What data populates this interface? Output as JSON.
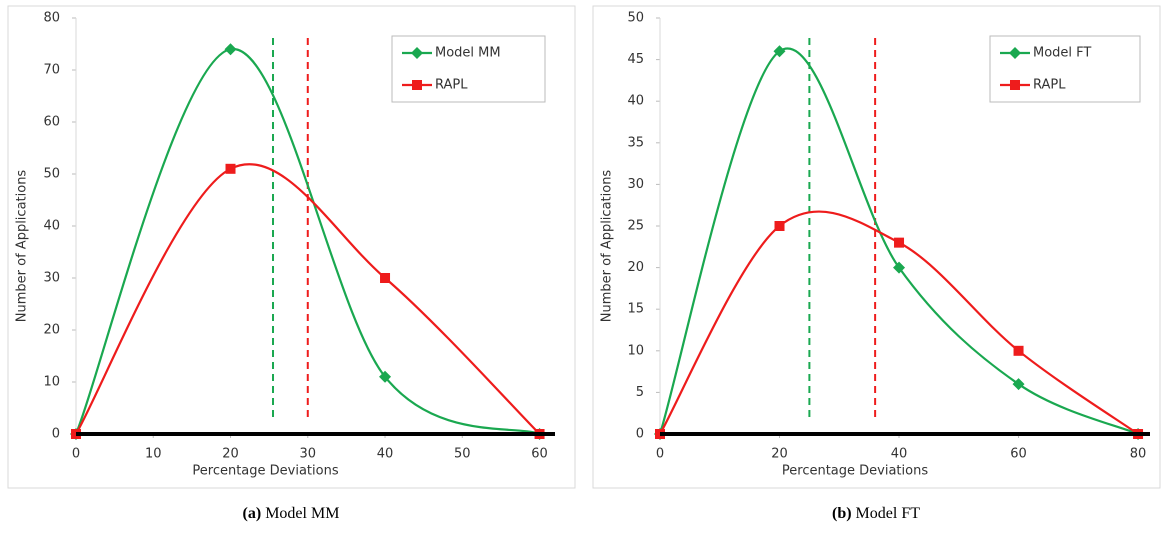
{
  "chart_data": [
    {
      "type": "line",
      "x_label": "Percentage Deviations",
      "y_label": "Number of Applications",
      "caption": {
        "label": "(a)",
        "text": "Model MM"
      },
      "xlim": [
        0,
        62
      ],
      "xticks": [
        0,
        10,
        20,
        30,
        40,
        50,
        60
      ],
      "ylim": [
        0,
        80
      ],
      "yticks": [
        0,
        10,
        20,
        30,
        40,
        50,
        60,
        70,
        80
      ],
      "legend": "upper right",
      "series": [
        {
          "name": "Model MM",
          "color": "#1aa850",
          "marker": "diamond",
          "x": [
            0,
            20,
            40,
            60
          ],
          "values": [
            0,
            74,
            11,
            0
          ]
        },
        {
          "name": "RAPL",
          "color": "#ee1c1c",
          "marker": "square",
          "x": [
            0,
            20,
            40,
            60
          ],
          "values": [
            0,
            51,
            30,
            0
          ]
        }
      ],
      "vlines": [
        {
          "x": 25.5,
          "color": "#1aa850"
        },
        {
          "x": 30,
          "color": "#ee1c1c"
        }
      ]
    },
    {
      "type": "line",
      "x_label": "Percentage Deviations",
      "y_label": "Number of Applications",
      "caption": {
        "label": "(b)",
        "text": "Model FT"
      },
      "xlim": [
        0,
        82
      ],
      "xticks": [
        0,
        20,
        40,
        60,
        80
      ],
      "ylim": [
        0,
        50
      ],
      "yticks": [
        0,
        5,
        10,
        15,
        20,
        25,
        30,
        35,
        40,
        45,
        50
      ],
      "legend": "upper right",
      "series": [
        {
          "name": "Model FT",
          "color": "#1aa850",
          "marker": "diamond",
          "x": [
            0,
            20,
            40,
            60,
            80
          ],
          "values": [
            0,
            46,
            20,
            6,
            0
          ]
        },
        {
          "name": "RAPL",
          "color": "#ee1c1c",
          "marker": "square",
          "x": [
            0,
            20,
            40,
            60,
            80
          ],
          "values": [
            0,
            25,
            23,
            10,
            0
          ]
        }
      ],
      "vlines": [
        {
          "x": 25,
          "color": "#1aa850"
        },
        {
          "x": 36,
          "color": "#ee1c1c"
        }
      ]
    }
  ]
}
